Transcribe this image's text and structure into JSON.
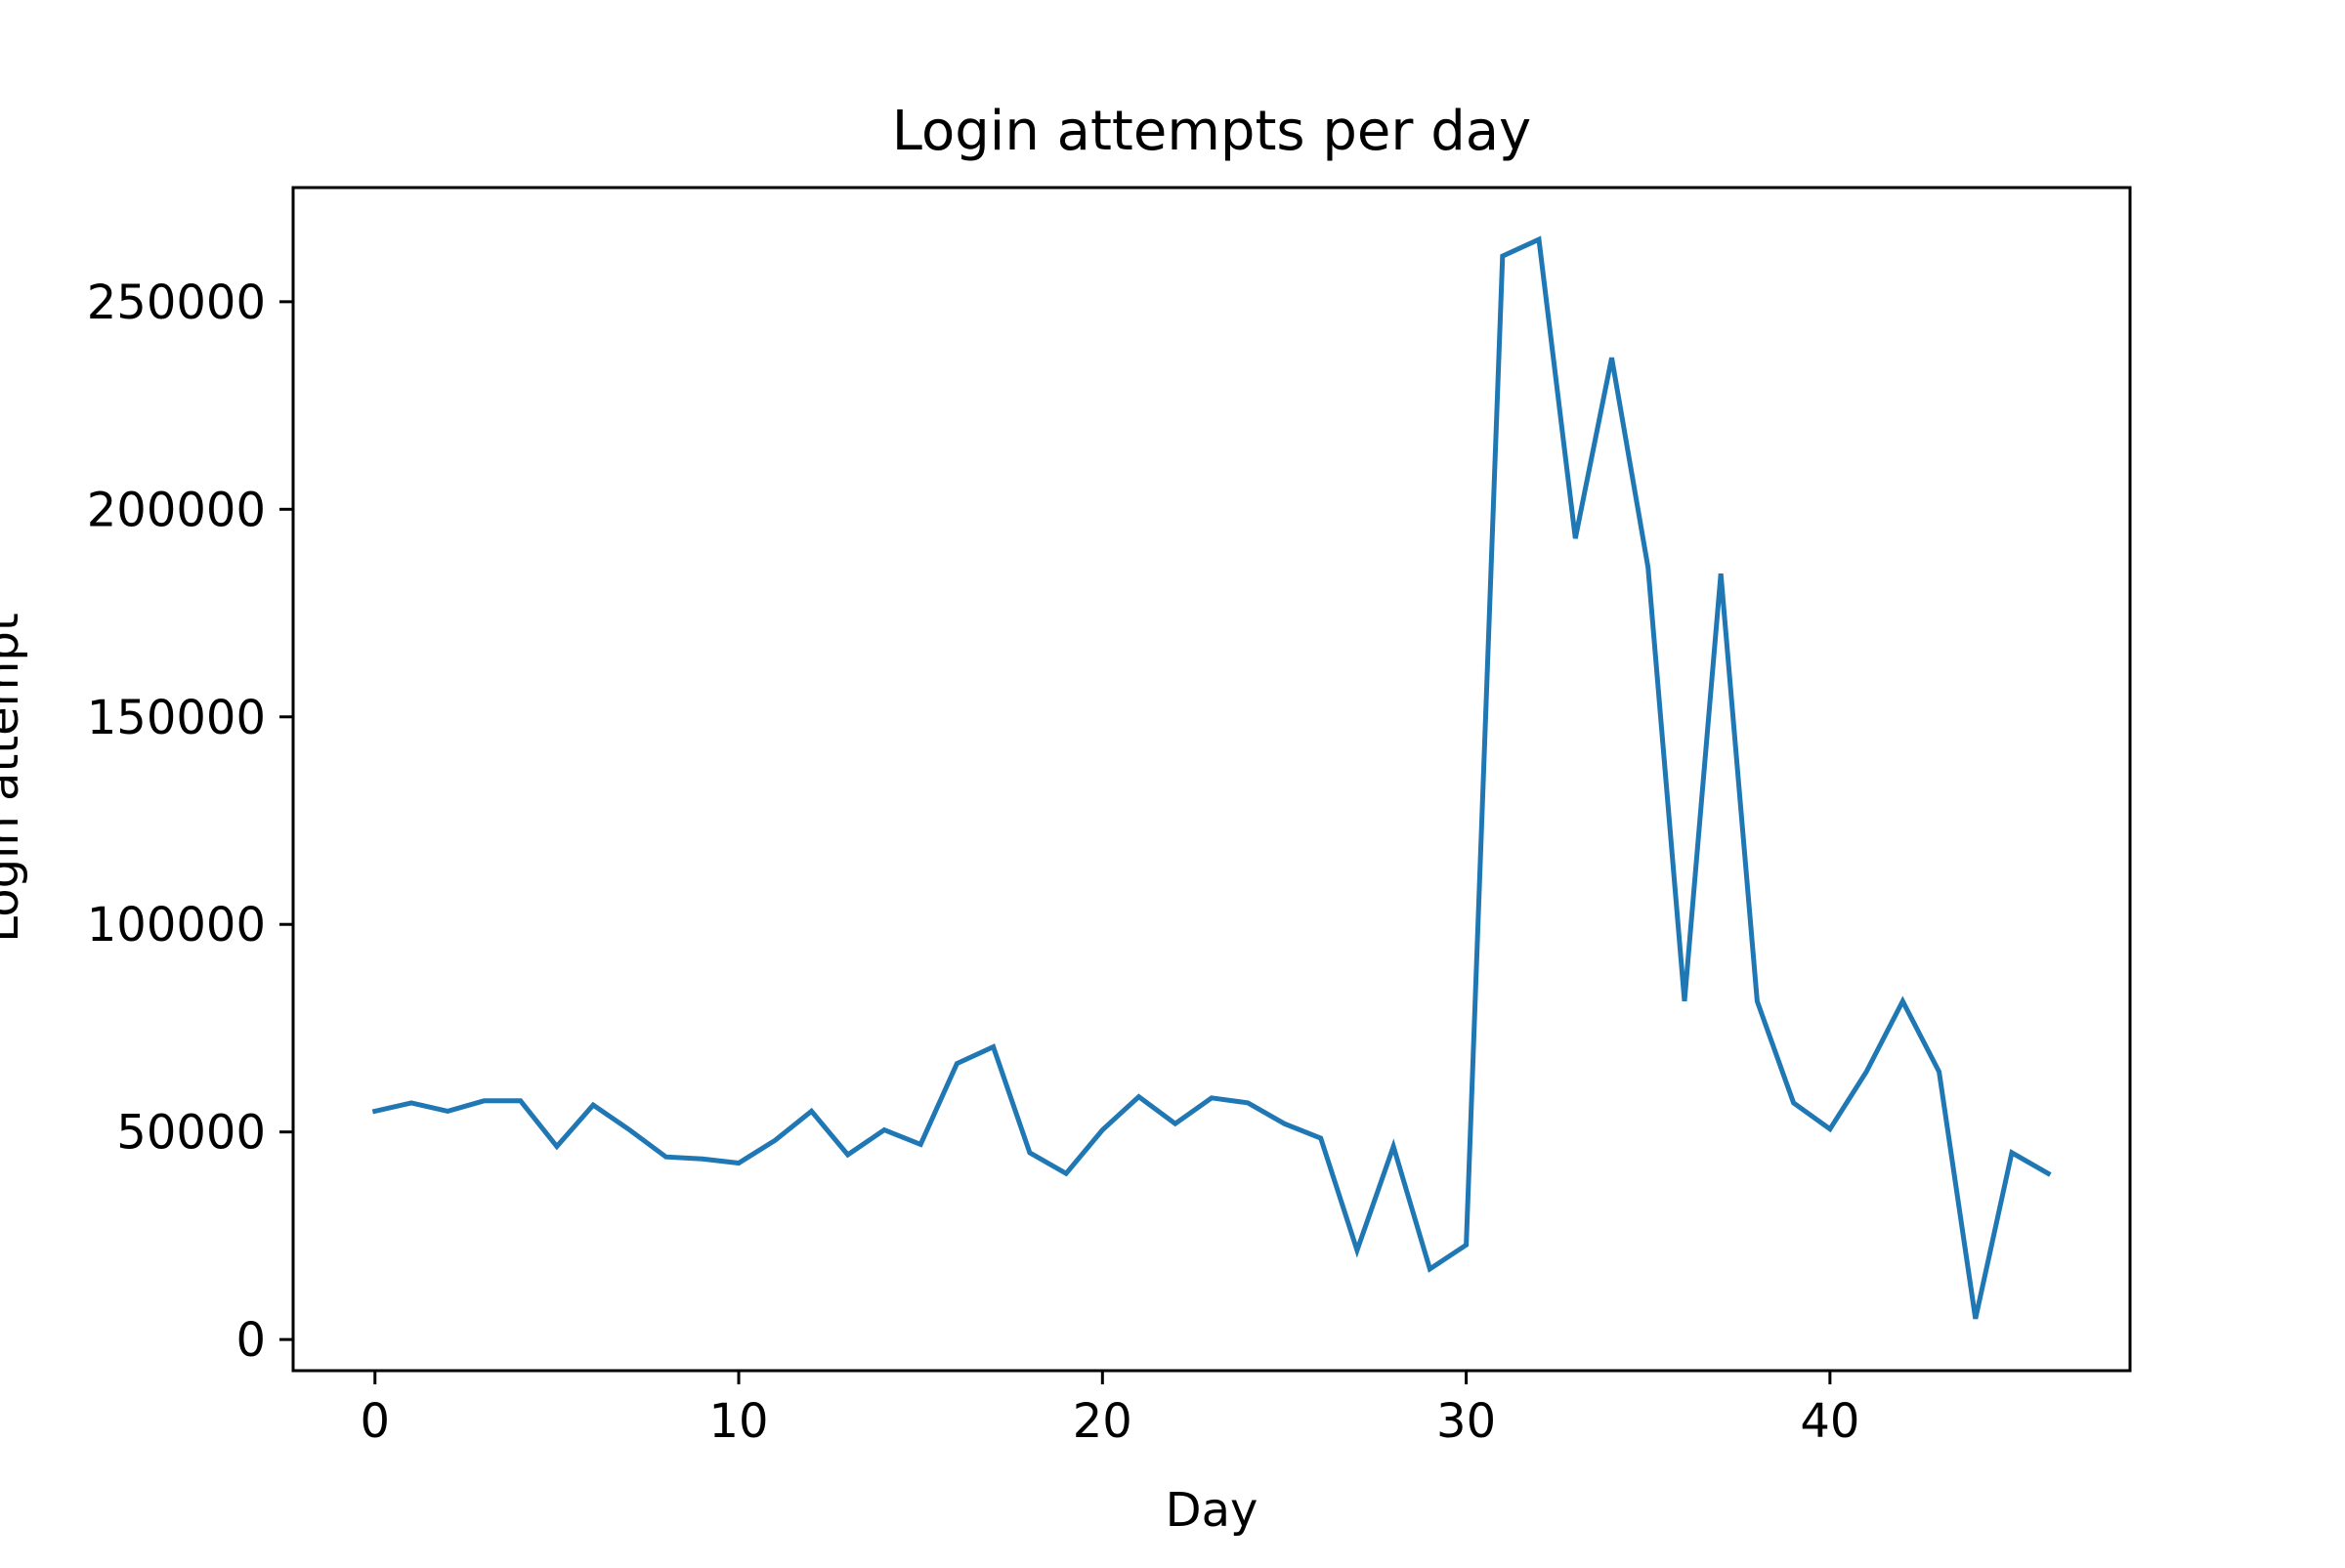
{
  "chart_data": {
    "type": "line",
    "title": "Login attempts per day",
    "xlabel": "Day",
    "ylabel": "Login attempt",
    "xlim": [
      -2.25,
      48.25
    ],
    "ylim": [
      -7500,
      277500
    ],
    "xticks": [
      0,
      10,
      20,
      30,
      40
    ],
    "xtick_labels": [
      "0",
      "10",
      "20",
      "30",
      "40"
    ],
    "yticks": [
      0,
      50000,
      100000,
      150000,
      200000,
      250000
    ],
    "ytick_labels": [
      "0",
      "50000",
      "100000",
      "150000",
      "200000",
      "250000"
    ],
    "grid": false,
    "series": [
      {
        "color": "#1f77b4",
        "x": [
          0,
          1,
          2,
          3,
          4,
          5,
          6,
          7,
          8,
          9,
          10,
          11,
          12,
          13,
          14,
          15,
          16,
          17,
          18,
          19,
          20,
          21,
          22,
          23,
          24,
          25,
          26,
          27,
          28,
          29,
          30,
          31,
          32,
          33,
          34,
          35,
          36,
          37,
          38,
          39,
          40,
          41,
          42,
          43,
          44,
          45,
          46
        ],
        "values": [
          55000,
          57000,
          55000,
          57500,
          57500,
          46500,
          56500,
          50500,
          44000,
          43500,
          42500,
          48000,
          55000,
          44500,
          50500,
          47000,
          66500,
          70500,
          45000,
          40000,
          50500,
          58500,
          52000,
          58200,
          57000,
          52000,
          48500,
          21500,
          46500,
          17000,
          22800,
          261000,
          265000,
          193000,
          236500,
          186000,
          81500,
          184500,
          81500,
          57000,
          50700,
          64500,
          81500,
          64500,
          5000,
          45000,
          40000
        ]
      }
    ]
  }
}
